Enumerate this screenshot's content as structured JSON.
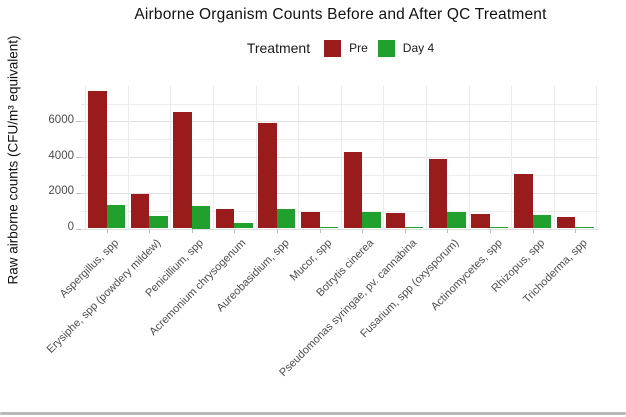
{
  "chart_data": {
    "type": "bar",
    "title": "Airborne Organism Counts Before and After QC Treatment",
    "xlabel": "",
    "ylabel": "Raw airborne counts (CFU/m³ equivalent)",
    "legend_title": "Treatment",
    "legend_position": "top-center",
    "grid": true,
    "ylim": [
      0,
      8000
    ],
    "y_ticks": [
      0,
      2000,
      4000,
      6000
    ],
    "y_minor_gridlines": [
      1000,
      3000,
      5000,
      7000
    ],
    "categories": [
      "Aspergillus, spp",
      "Erysiphe, spp (powdery mildew)",
      "Penicillium, spp",
      "Acremonium chrysogenum",
      "Aureobasidium, spp",
      "Mucor, spp",
      "Botrytis cinerea",
      "Pseudomonas syringae, pv. cannabina",
      "Fusarium, spp (oxysporum)",
      "Actinomycetes, spp",
      "Rhizopus, spp",
      "Trichoderma, spp"
    ],
    "series": [
      {
        "name": "Pre",
        "color": "#9A1B1B",
        "values": [
          7700,
          1950,
          6500,
          1100,
          5900,
          950,
          4300,
          850,
          3900,
          800,
          3050,
          650
        ]
      },
      {
        "name": "Day 4",
        "color": "#20A02C",
        "values": [
          1300,
          700,
          1250,
          320,
          1100,
          80,
          950,
          80,
          900,
          80,
          750,
          60
        ]
      }
    ]
  },
  "misc": {
    "y_tick_labels": [
      "0",
      "2000",
      "4000",
      "6000"
    ]
  }
}
